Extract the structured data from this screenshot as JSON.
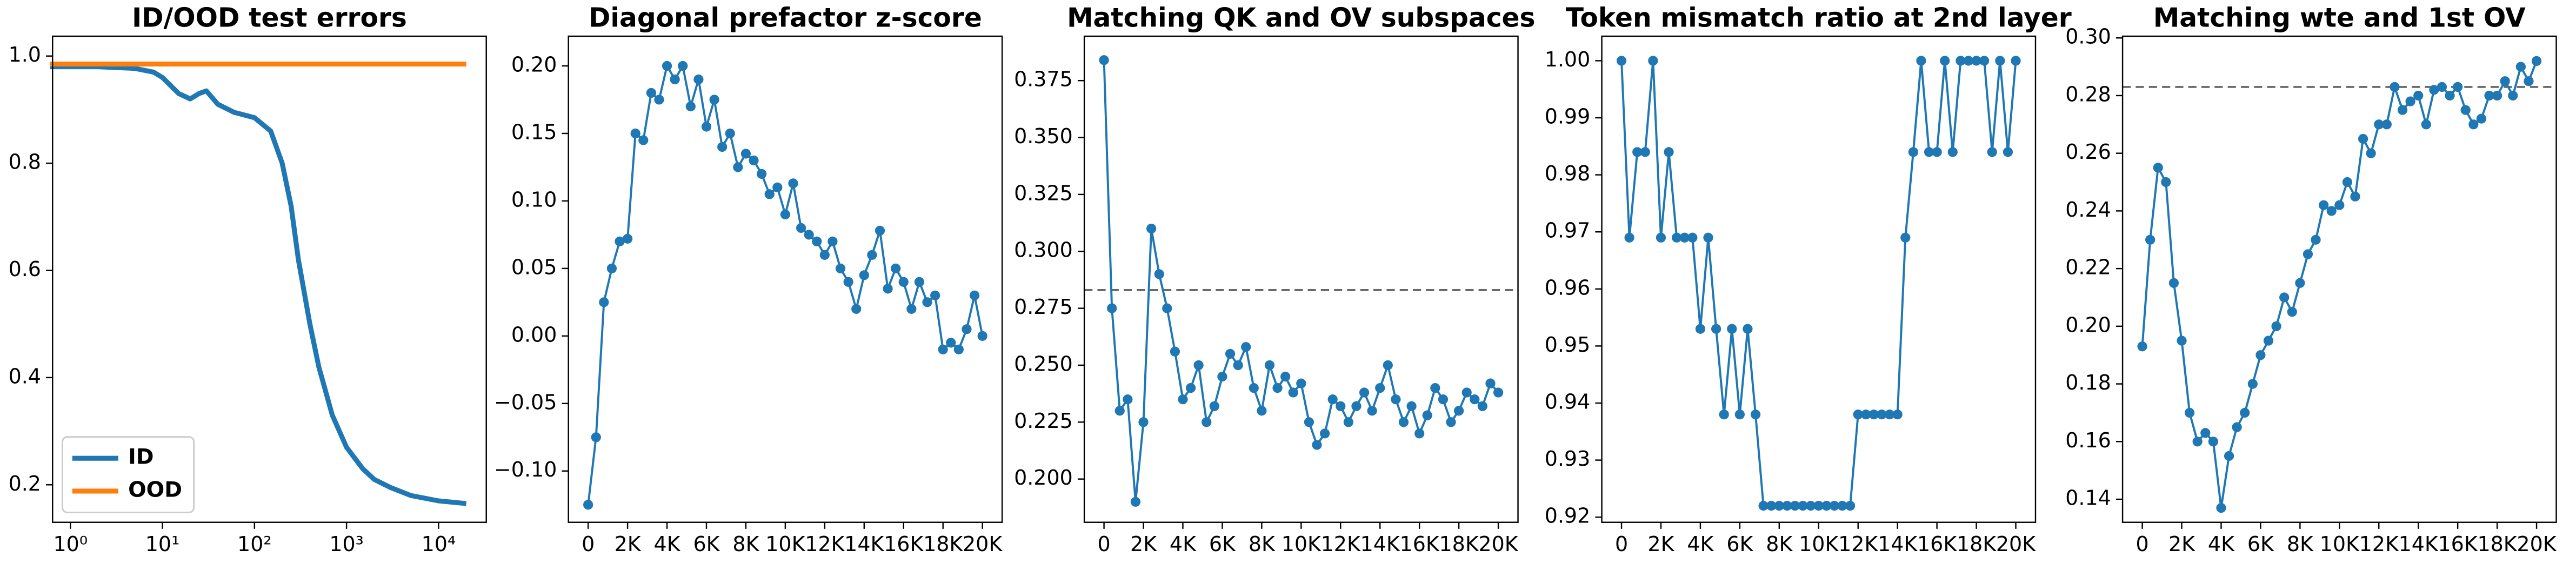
{
  "chart_data": [
    {
      "type": "line",
      "title": "ID/OOD test errors",
      "xscale": "log",
      "x": [
        0.6,
        1,
        2,
        5,
        8,
        10,
        15,
        20,
        25,
        30,
        40,
        60,
        100,
        150,
        200,
        250,
        300,
        400,
        500,
        700,
        1000,
        1500,
        2000,
        3000,
        5000,
        10000,
        20000
      ],
      "series": [
        {
          "name": "ID",
          "color": "#1f77b4",
          "values": [
            0.98,
            0.98,
            0.98,
            0.977,
            0.97,
            0.96,
            0.93,
            0.92,
            0.93,
            0.935,
            0.91,
            0.895,
            0.885,
            0.86,
            0.8,
            0.72,
            0.62,
            0.5,
            0.42,
            0.33,
            0.27,
            0.23,
            0.21,
            0.195,
            0.18,
            0.17,
            0.165
          ]
        },
        {
          "name": "OOD",
          "color": "#ff7f0e",
          "values": [
            0.985,
            0.985,
            0.985,
            0.985,
            0.985,
            0.985,
            0.985,
            0.985,
            0.985,
            0.985,
            0.985,
            0.985,
            0.985,
            0.985,
            0.985,
            0.985,
            0.985,
            0.985,
            0.985,
            0.985,
            0.985,
            0.985,
            0.985,
            0.985,
            0.985,
            0.985,
            0.985
          ]
        }
      ],
      "xlim": [
        0.64,
        33000
      ],
      "xticks": [
        {
          "value": 1,
          "label": "10⁰"
        },
        {
          "value": 10,
          "label": "10¹"
        },
        {
          "value": 100,
          "label": "10²"
        },
        {
          "value": 1000,
          "label": "10³"
        },
        {
          "value": 10000,
          "label": "10⁴"
        }
      ],
      "ylim": [
        0.13,
        1.037
      ],
      "yticks": [
        0.2,
        0.4,
        0.6,
        0.8,
        {
          "value": 1,
          "label": "1.0"
        }
      ],
      "legend": "lower left"
    },
    {
      "type": "line",
      "title": "Diagonal prefactor z-score",
      "marker": true,
      "color": "#1f77b4",
      "x": [
        0,
        400,
        800,
        1200,
        1600,
        2000,
        2400,
        2800,
        3200,
        3600,
        4000,
        4400,
        4800,
        5200,
        5600,
        6000,
        6400,
        6800,
        7200,
        7600,
        8000,
        8400,
        8800,
        9200,
        9600,
        10000,
        10400,
        10800,
        11200,
        11600,
        12000,
        12400,
        12800,
        13200,
        13600,
        14000,
        14400,
        14800,
        15200,
        15600,
        16000,
        16400,
        16800,
        17200,
        17600,
        18000,
        18400,
        18800,
        19200,
        19600,
        20000
      ],
      "values": [
        -0.125,
        -0.075,
        0.025,
        0.05,
        0.07,
        0.072,
        0.15,
        0.145,
        0.18,
        0.175,
        0.2,
        0.19,
        0.2,
        0.17,
        0.19,
        0.155,
        0.175,
        0.14,
        0.15,
        0.125,
        0.135,
        0.13,
        0.12,
        0.105,
        0.11,
        0.09,
        0.113,
        0.08,
        0.075,
        0.07,
        0.06,
        0.07,
        0.05,
        0.04,
        0.02,
        0.045,
        0.06,
        0.078,
        0.035,
        0.05,
        0.04,
        0.02,
        0.04,
        0.025,
        0.03,
        -0.01,
        -0.005,
        -0.01,
        0.005,
        0.03,
        0.0
      ],
      "xlim": [
        -1000,
        21000
      ],
      "xticks": [
        0,
        {
          "value": 2000,
          "label": "2K"
        },
        {
          "value": 4000,
          "label": "4K"
        },
        {
          "value": 6000,
          "label": "6K"
        },
        {
          "value": 8000,
          "label": "8K"
        },
        {
          "value": 10000,
          "label": "10K"
        },
        {
          "value": 12000,
          "label": "12K"
        },
        {
          "value": 14000,
          "label": "14K"
        },
        {
          "value": 16000,
          "label": "16K"
        },
        {
          "value": 18000,
          "label": "18K"
        },
        {
          "value": 20000,
          "label": "20K"
        }
      ],
      "ylim": [
        -0.138,
        0.222
      ],
      "yticks": [
        {
          "value": -0.1,
          "label": "−0.10"
        },
        {
          "value": -0.05,
          "label": "−0.05"
        },
        {
          "value": 0,
          "label": "0.00"
        },
        {
          "value": 0.05,
          "label": "0.05"
        },
        {
          "value": 0.1,
          "label": "0.10"
        },
        {
          "value": 0.15,
          "label": "0.15"
        },
        {
          "value": 0.2,
          "label": "0.20"
        }
      ]
    },
    {
      "type": "line",
      "title": "Matching QK and OV subspaces",
      "marker": true,
      "color": "#1f77b4",
      "hline": 0.283,
      "x": [
        0,
        400,
        800,
        1200,
        1600,
        2000,
        2400,
        2800,
        3200,
        3600,
        4000,
        4400,
        4800,
        5200,
        5600,
        6000,
        6400,
        6800,
        7200,
        7600,
        8000,
        8400,
        8800,
        9200,
        9600,
        10000,
        10400,
        10800,
        11200,
        11600,
        12000,
        12400,
        12800,
        13200,
        13600,
        14000,
        14400,
        14800,
        15200,
        15600,
        16000,
        16400,
        16800,
        17200,
        17600,
        18000,
        18400,
        18800,
        19200,
        19600,
        20000
      ],
      "values": [
        0.384,
        0.275,
        0.23,
        0.235,
        0.19,
        0.225,
        0.31,
        0.29,
        0.275,
        0.256,
        0.235,
        0.24,
        0.25,
        0.225,
        0.232,
        0.245,
        0.255,
        0.25,
        0.258,
        0.24,
        0.23,
        0.25,
        0.24,
        0.245,
        0.238,
        0.242,
        0.225,
        0.215,
        0.22,
        0.235,
        0.232,
        0.225,
        0.232,
        0.238,
        0.23,
        0.24,
        0.25,
        0.235,
        0.225,
        0.232,
        0.22,
        0.228,
        0.24,
        0.235,
        0.225,
        0.23,
        0.238,
        0.235,
        0.232,
        0.242,
        0.238
      ],
      "xlim": [
        -1000,
        21000
      ],
      "xticks": [
        0,
        {
          "value": 2000,
          "label": "2K"
        },
        {
          "value": 4000,
          "label": "4K"
        },
        {
          "value": 6000,
          "label": "6K"
        },
        {
          "value": 8000,
          "label": "8K"
        },
        {
          "value": 10000,
          "label": "10K"
        },
        {
          "value": 12000,
          "label": "12K"
        },
        {
          "value": 14000,
          "label": "14K"
        },
        {
          "value": 16000,
          "label": "16K"
        },
        {
          "value": 18000,
          "label": "18K"
        },
        {
          "value": 20000,
          "label": "20K"
        }
      ],
      "ylim": [
        0.181,
        0.3945
      ],
      "yticks": [
        {
          "value": 0.2,
          "label": "0.200"
        },
        0.225,
        {
          "value": 0.25,
          "label": "0.250"
        },
        0.275,
        {
          "value": 0.3,
          "label": "0.300"
        },
        0.325,
        {
          "value": 0.35,
          "label": "0.350"
        },
        0.375
      ]
    },
    {
      "type": "line",
      "title": "Token mismatch ratio at 2nd layer",
      "marker": true,
      "color": "#1f77b4",
      "x": [
        0,
        400,
        800,
        1200,
        1600,
        2000,
        2400,
        2800,
        3200,
        3600,
        4000,
        4400,
        4800,
        5200,
        5600,
        6000,
        6400,
        6800,
        7200,
        7600,
        8000,
        8400,
        8800,
        9200,
        9600,
        10000,
        10400,
        10800,
        11200,
        11600,
        12000,
        12400,
        12800,
        13200,
        13600,
        14000,
        14400,
        14800,
        15200,
        15600,
        16000,
        16400,
        16800,
        17200,
        17600,
        18000,
        18400,
        18800,
        19200,
        19600,
        20000
      ],
      "values": [
        1.0,
        0.969,
        0.984,
        0.984,
        1.0,
        0.969,
        0.984,
        0.969,
        0.969,
        0.969,
        0.953,
        0.969,
        0.953,
        0.938,
        0.953,
        0.938,
        0.953,
        0.938,
        0.922,
        0.922,
        0.922,
        0.922,
        0.922,
        0.922,
        0.922,
        0.922,
        0.922,
        0.922,
        0.922,
        0.922,
        0.938,
        0.938,
        0.938,
        0.938,
        0.938,
        0.938,
        0.969,
        0.984,
        1.0,
        0.984,
        0.984,
        1.0,
        0.984,
        1.0,
        1.0,
        1.0,
        1.0,
        0.984,
        1.0,
        0.984,
        1.0
      ],
      "xlim": [
        -1000,
        21000
      ],
      "xticks": [
        0,
        {
          "value": 2000,
          "label": "2K"
        },
        {
          "value": 4000,
          "label": "4K"
        },
        {
          "value": 6000,
          "label": "6K"
        },
        {
          "value": 8000,
          "label": "8K"
        },
        {
          "value": 10000,
          "label": "10K"
        },
        {
          "value": 12000,
          "label": "12K"
        },
        {
          "value": 14000,
          "label": "14K"
        },
        {
          "value": 16000,
          "label": "16K"
        },
        {
          "value": 18000,
          "label": "18K"
        },
        {
          "value": 20000,
          "label": "20K"
        }
      ],
      "ylim": [
        0.9191,
        1.0043
      ],
      "yticks": [
        0.92,
        0.93,
        0.94,
        0.95,
        0.96,
        0.97,
        0.98,
        0.99,
        {
          "value": 1,
          "label": "1.00"
        }
      ]
    },
    {
      "type": "line",
      "title": "Matching wte and 1st OV",
      "marker": true,
      "color": "#1f77b4",
      "hline": 0.283,
      "x": [
        0,
        400,
        800,
        1200,
        1600,
        2000,
        2400,
        2800,
        3200,
        3600,
        4000,
        4400,
        4800,
        5200,
        5600,
        6000,
        6400,
        6800,
        7200,
        7600,
        8000,
        8400,
        8800,
        9200,
        9600,
        10000,
        10400,
        10800,
        11200,
        11600,
        12000,
        12400,
        12800,
        13200,
        13600,
        14000,
        14400,
        14800,
        15200,
        15600,
        16000,
        16400,
        16800,
        17200,
        17600,
        18000,
        18400,
        18800,
        19200,
        19600,
        20000
      ],
      "values": [
        0.193,
        0.23,
        0.255,
        0.25,
        0.215,
        0.195,
        0.17,
        0.16,
        0.163,
        0.16,
        0.137,
        0.155,
        0.165,
        0.17,
        0.18,
        0.19,
        0.195,
        0.2,
        0.21,
        0.205,
        0.215,
        0.225,
        0.23,
        0.242,
        0.24,
        0.242,
        0.25,
        0.245,
        0.265,
        0.26,
        0.27,
        0.27,
        0.283,
        0.275,
        0.278,
        0.28,
        0.27,
        0.282,
        0.283,
        0.28,
        0.283,
        0.275,
        0.27,
        0.272,
        0.28,
        0.28,
        0.285,
        0.28,
        0.29,
        0.285,
        0.292
      ],
      "xlim": [
        -1000,
        21000
      ],
      "xticks": [
        0,
        {
          "value": 2000,
          "label": "2K"
        },
        {
          "value": 4000,
          "label": "4K"
        },
        {
          "value": 6000,
          "label": "6K"
        },
        {
          "value": 8000,
          "label": "8K"
        },
        {
          "value": 10000,
          "label": "10K"
        },
        {
          "value": 12000,
          "label": "12K"
        },
        {
          "value": 14000,
          "label": "14K"
        },
        {
          "value": 16000,
          "label": "16K"
        },
        {
          "value": 18000,
          "label": "18K"
        },
        {
          "value": 20000,
          "label": "20K"
        }
      ],
      "ylim": [
        0.132,
        0.3006
      ],
      "yticks": [
        0.14,
        0.16,
        0.18,
        {
          "value": 0.2,
          "label": "0.20"
        },
        0.22,
        0.24,
        0.26,
        0.28,
        {
          "value": 0.3,
          "label": "0.30"
        }
      ]
    }
  ]
}
